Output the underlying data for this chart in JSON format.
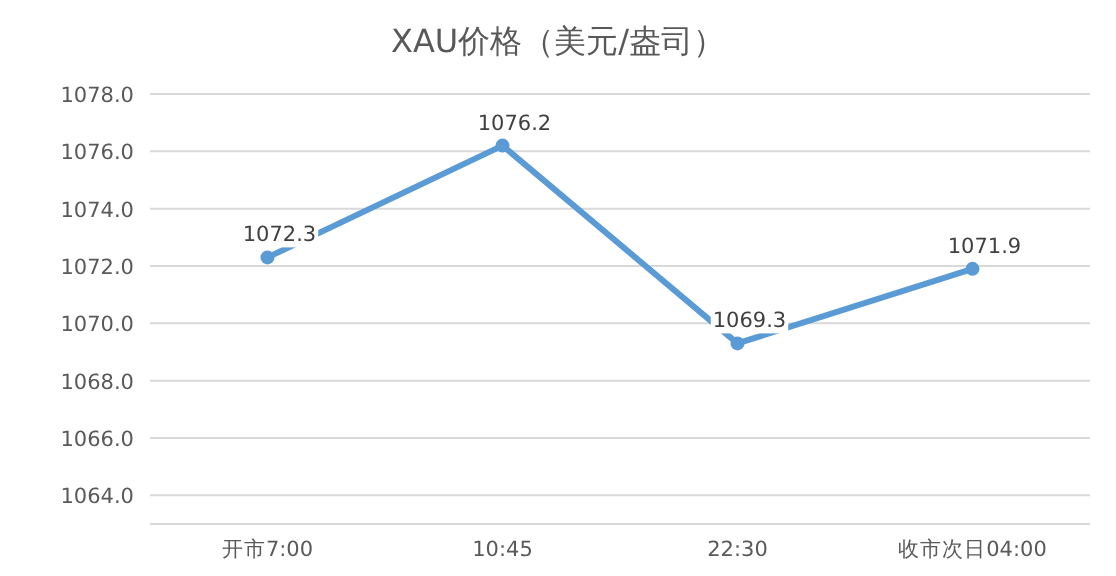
{
  "chart_data": {
    "type": "line",
    "title": "XAU价格（美元/盎司）",
    "categories": [
      "开市7:00",
      "10:45",
      "22:30",
      "收市次日04:00"
    ],
    "series": [
      {
        "color": "#5b9bd5",
        "values": [
          1072.3,
          1076.2,
          1069.3,
          1071.9
        ]
      }
    ],
    "ylim": [
      1063,
      1078
    ],
    "yticks": [
      {
        "value": 1064,
        "label": "1064.0"
      },
      {
        "value": 1066,
        "label": "1066.0"
      },
      {
        "value": 1068,
        "label": "1068.0"
      },
      {
        "value": 1070,
        "label": "1070.0"
      },
      {
        "value": 1072,
        "label": "1072.0"
      },
      {
        "value": 1074,
        "label": "1074.0"
      },
      {
        "value": 1076,
        "label": "1076.0"
      },
      {
        "value": 1078,
        "label": "1078.0"
      }
    ],
    "grid": "y",
    "data_labels": true,
    "marker": "circle",
    "line_style": "solid"
  }
}
